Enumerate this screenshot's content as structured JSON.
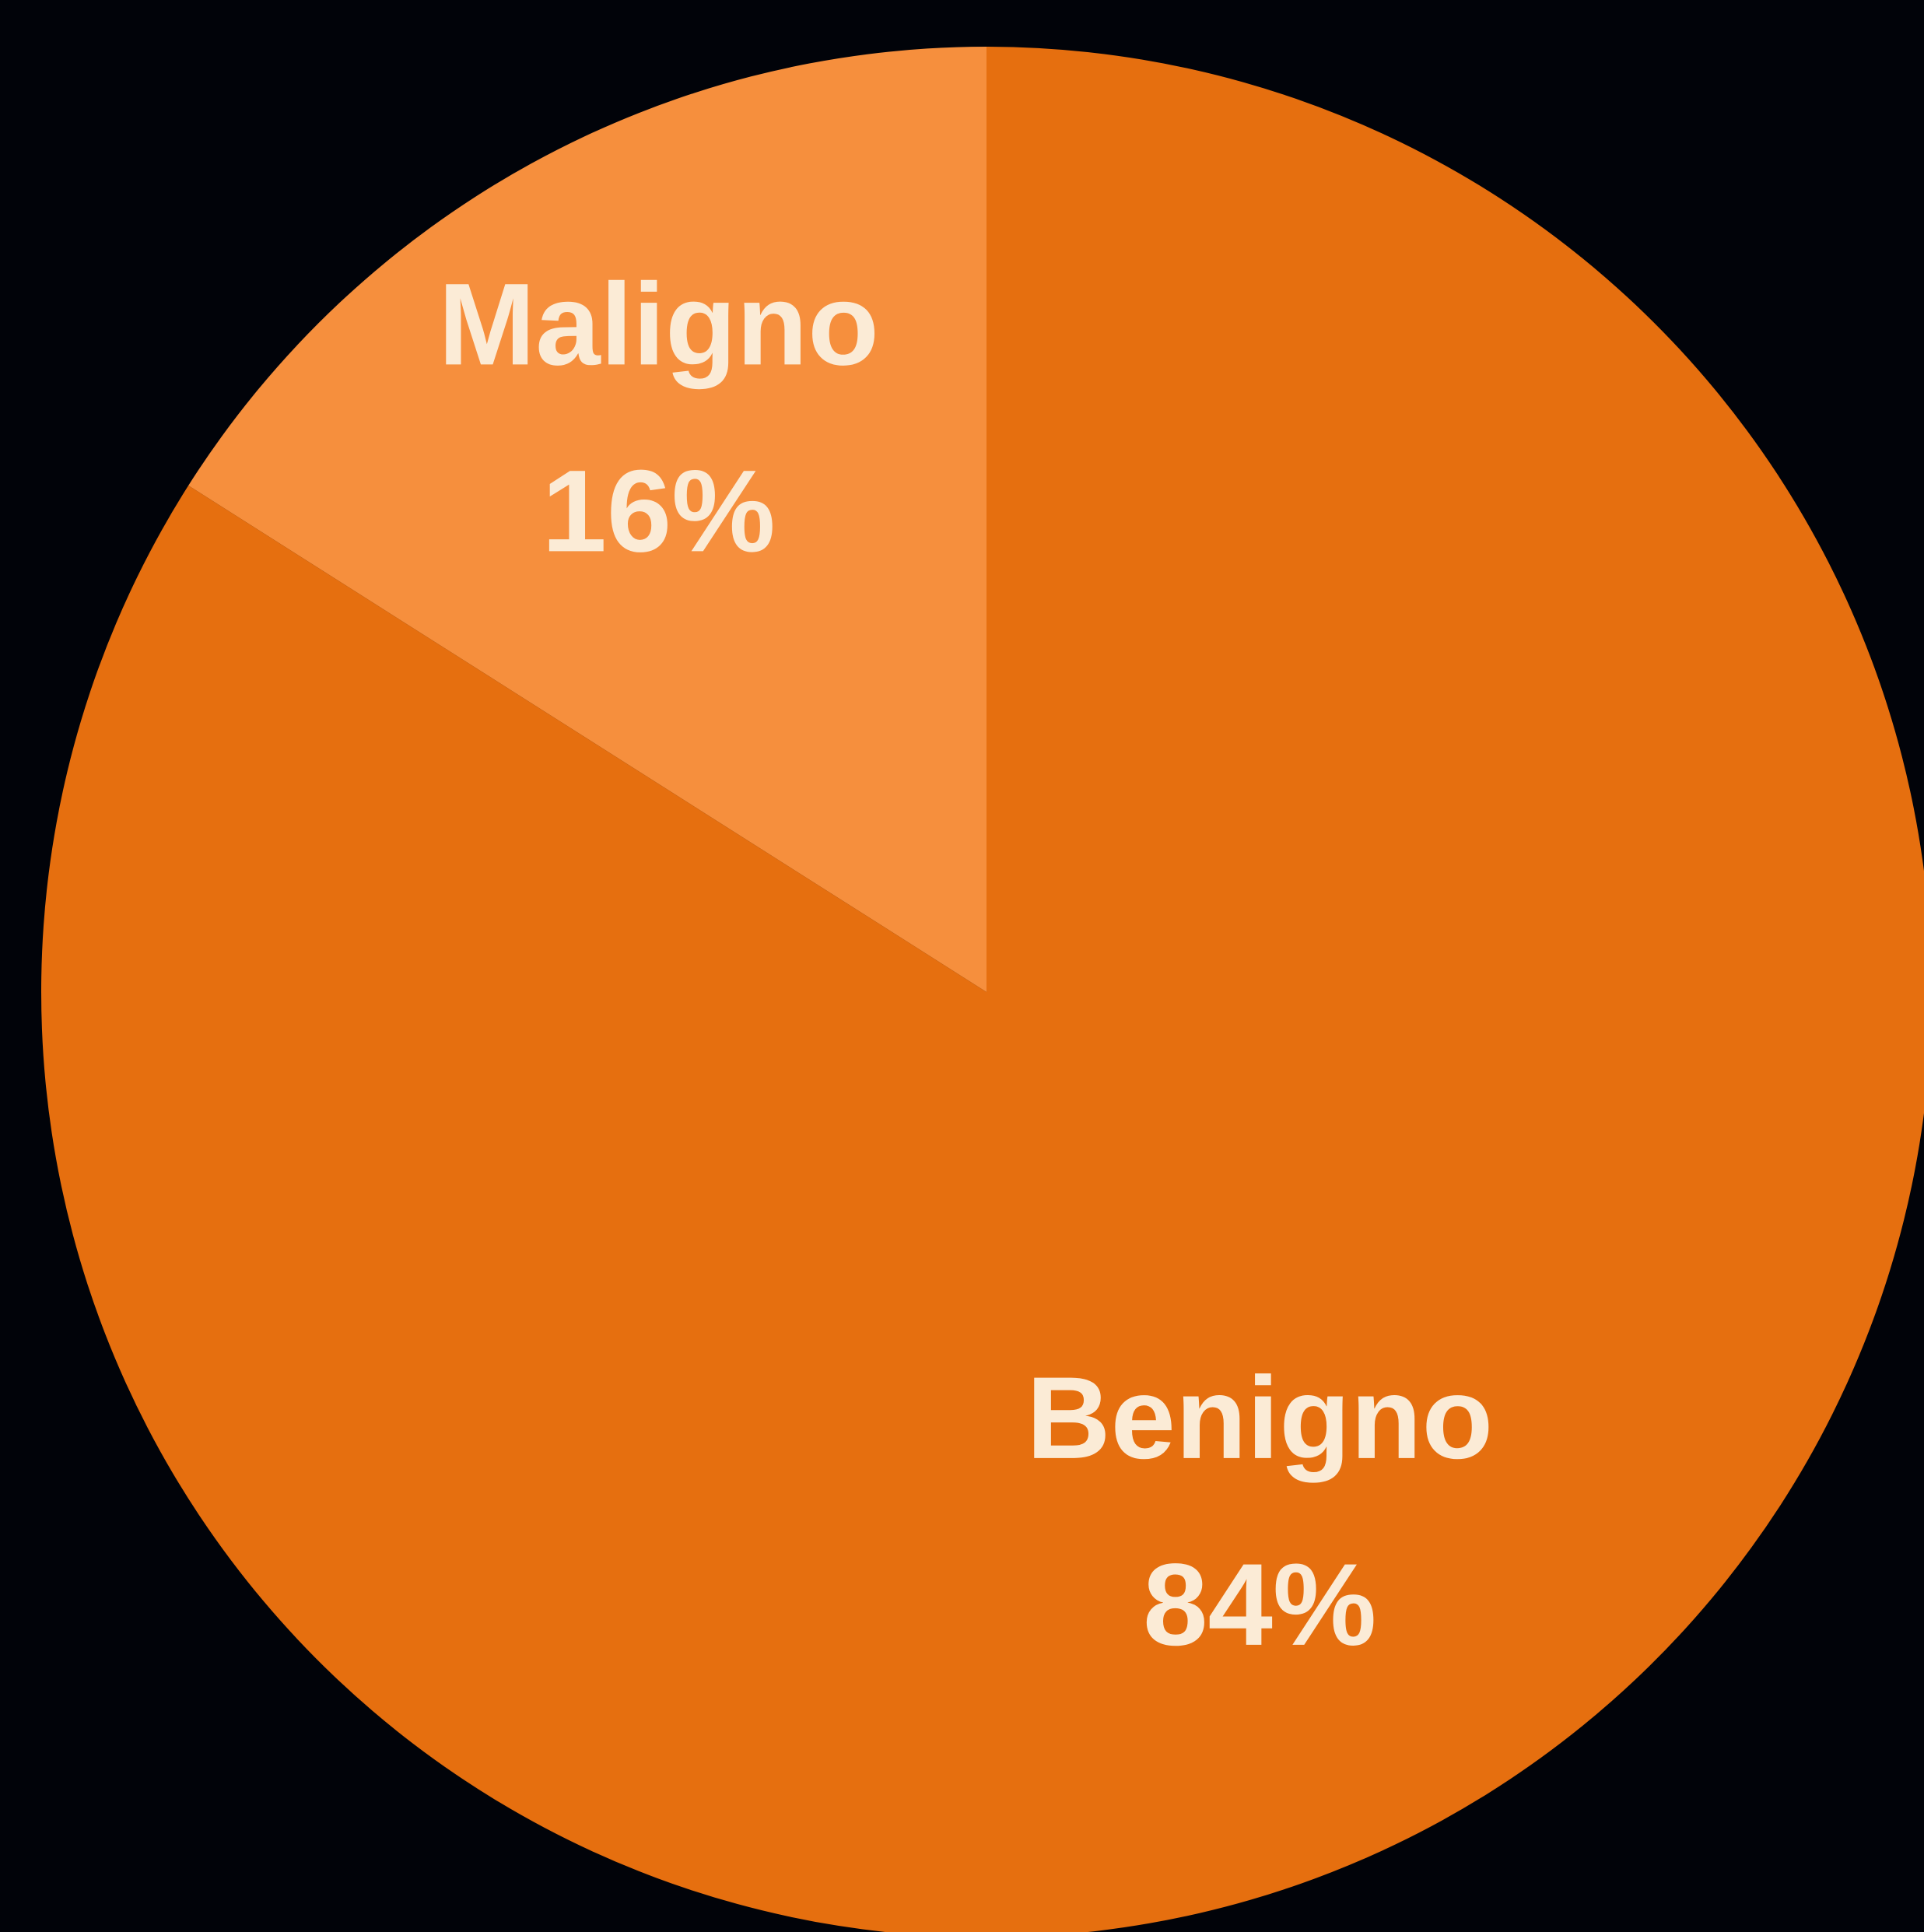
{
  "chart_data": {
    "type": "pie",
    "categories": [
      "Maligno",
      "Benigno"
    ],
    "values": [
      16,
      84
    ],
    "labels": [
      "16%",
      "84%"
    ],
    "colors": [
      "#F68F3D",
      "#E66F0F"
    ],
    "label_color": "#FBEBD6",
    "background": "#010309",
    "title": "",
    "legend": "none"
  }
}
